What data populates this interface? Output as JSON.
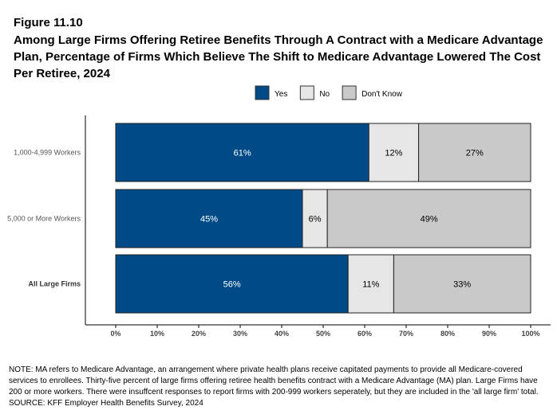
{
  "figure_label": "Figure 11.10",
  "chart_data": {
    "type": "bar",
    "orientation": "horizontal",
    "stacked": true,
    "title": "Among Large Firms Offering Retiree Benefits Through A Contract with a Medicare Advantage Plan, Percentage of Firms Which Believe The Shift to Medicare Advantage Lowered The Cost Per Retiree, 2024",
    "categories": [
      "1,000-4,999 Workers",
      "5,000 or More Workers",
      "All Large Firms"
    ],
    "series": [
      {
        "name": "Yes",
        "values": [
          61,
          45,
          56
        ],
        "labels": [
          "61%",
          "45%",
          "56%"
        ],
        "color": "#004B87"
      },
      {
        "name": "No",
        "values": [
          12,
          6,
          11
        ],
        "labels": [
          "12%",
          "6%",
          "11%"
        ],
        "color": "#E6E6E6"
      },
      {
        "name": "Don't Know",
        "values": [
          27,
          49,
          33
        ],
        "labels": [
          "27%",
          "49%",
          "33%"
        ],
        "color": "#C9C9C9"
      }
    ],
    "xlim": [
      0,
      100
    ],
    "xticks": [
      "0%",
      "10%",
      "20%",
      "30%",
      "40%",
      "50%",
      "60%",
      "70%",
      "80%",
      "90%",
      "100%"
    ],
    "legend_position": "top",
    "grid": false
  },
  "note": "NOTE: MA refers to Medicare Advantage, an arrangement where private health plans receive capitated payments to provide all Medicare-covered services to enrollees.  Thirty-five percent of large firms offering retiree health benefits contract with a Medicare Advantage (MA) plan.  Large Firms have 200 or more workers.  There were insuffcent responses to report firms with 200-999 workers seperately, but they are included in the 'all large firm' total.",
  "source": "SOURCE: KFF Employer Health Benefits Survey, 2024"
}
